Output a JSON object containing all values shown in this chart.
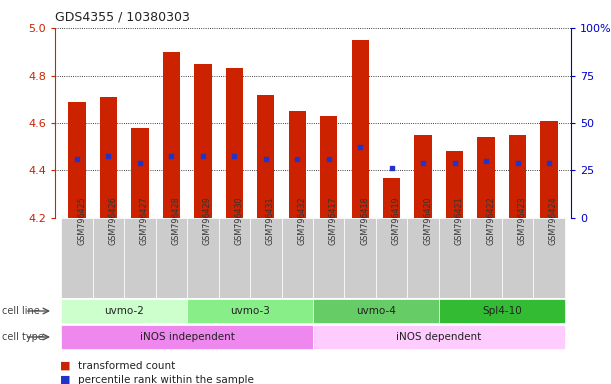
{
  "title": "GDS4355 / 10380303",
  "samples": [
    "GSM796425",
    "GSM796426",
    "GSM796427",
    "GSM796428",
    "GSM796429",
    "GSM796430",
    "GSM796431",
    "GSM796432",
    "GSM796417",
    "GSM796418",
    "GSM796419",
    "GSM796420",
    "GSM796421",
    "GSM796422",
    "GSM796423",
    "GSM796424"
  ],
  "bar_tops": [
    4.69,
    4.71,
    4.58,
    4.9,
    4.85,
    4.83,
    4.72,
    4.65,
    4.63,
    4.95,
    4.37,
    4.55,
    4.48,
    4.54,
    4.55,
    4.61
  ],
  "bar_bottoms": [
    4.2,
    4.2,
    4.2,
    4.2,
    4.2,
    4.2,
    4.2,
    4.2,
    4.2,
    4.2,
    4.2,
    4.2,
    4.2,
    4.2,
    4.2,
    4.2
  ],
  "blue_marker_y": [
    4.45,
    4.46,
    4.43,
    4.46,
    4.46,
    4.46,
    4.45,
    4.45,
    4.45,
    4.5,
    4.41,
    4.43,
    4.43,
    4.44,
    4.43,
    4.43
  ],
  "bar_color": "#cc2200",
  "marker_color": "#2233cc",
  "ylim": [
    4.2,
    5.0
  ],
  "yticks_left": [
    4.2,
    4.4,
    4.6,
    4.8,
    5.0
  ],
  "yticks_right_vals": [
    0,
    25,
    50,
    75,
    100
  ],
  "yticks_right_labels": [
    "0",
    "25",
    "50",
    "75",
    "100%"
  ],
  "cell_line_groups": [
    {
      "label": "uvmo-2",
      "start": 0,
      "end": 3,
      "color": "#ccffcc"
    },
    {
      "label": "uvmo-3",
      "start": 4,
      "end": 7,
      "color": "#88ee88"
    },
    {
      "label": "uvmo-4",
      "start": 8,
      "end": 11,
      "color": "#66cc66"
    },
    {
      "label": "Spl4-10",
      "start": 12,
      "end": 15,
      "color": "#33bb33"
    }
  ],
  "cell_type_groups": [
    {
      "label": "iNOS independent",
      "start": 0,
      "end": 7,
      "color": "#ee88ee"
    },
    {
      "label": "iNOS dependent",
      "start": 8,
      "end": 15,
      "color": "#ffccff"
    }
  ],
  "legend_items": [
    {
      "label": "transformed count",
      "color": "#cc2200"
    },
    {
      "label": "percentile rank within the sample",
      "color": "#2233cc"
    }
  ],
  "left_axis_color": "#cc2200",
  "right_axis_color": "#0000cc",
  "bar_width": 0.55,
  "sample_label_bg": "#cccccc",
  "sample_label_color": "#333333"
}
